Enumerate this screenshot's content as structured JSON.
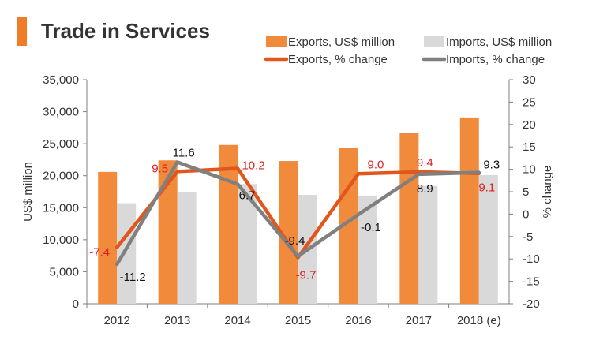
{
  "chart_data": {
    "type": "bar",
    "title": "Trade in Services",
    "categories": [
      "2012",
      "2013",
      "2014",
      "2015",
      "2016",
      "2017",
      "2018 (e)"
    ],
    "y_left": {
      "label": "US$ million",
      "min": 0,
      "max": 35000,
      "step": 5000,
      "ticks": [
        "0",
        "5,000",
        "10,000",
        "15,000",
        "20,000",
        "25,000",
        "30,000",
        "35,000"
      ]
    },
    "y_right": {
      "label": "% change",
      "min": -20,
      "max": 30,
      "step": 5,
      "ticks": [
        "-20",
        "-15",
        "-10",
        "-5",
        "0",
        "5",
        "10",
        "15",
        "20",
        "25",
        "30"
      ]
    },
    "grid": false,
    "legend_position": "top-right",
    "series": [
      {
        "name": "Exports, US$ million",
        "kind": "bar",
        "axis": "left",
        "color": "#f28a3c",
        "values": [
          20600,
          22400,
          24800,
          22300,
          24400,
          26700,
          29100
        ]
      },
      {
        "name": "Imports, US$ million",
        "kind": "bar",
        "axis": "left",
        "color": "#d9d9d9",
        "values": [
          15700,
          17500,
          18700,
          17000,
          16900,
          18400,
          20100
        ]
      },
      {
        "name": "Exports, % change",
        "kind": "line",
        "axis": "right",
        "color": "#e0561c",
        "label_color": "#e02020",
        "values": [
          -7.4,
          9.5,
          10.2,
          -9.7,
          9.0,
          9.4,
          9.1
        ],
        "labels": [
          "-7.4",
          "9.5",
          "10.2",
          "-9.7",
          "9.0",
          "9.4",
          "9.1"
        ]
      },
      {
        "name": "Imports, % change",
        "kind": "line",
        "axis": "right",
        "color": "#808080",
        "label_color": "#111111",
        "values": [
          -11.2,
          11.6,
          6.7,
          -9.4,
          -0.1,
          8.9,
          9.3
        ],
        "labels": [
          "-11.2",
          "11.6",
          "6.7",
          "-9.4",
          "-0.1",
          "8.9",
          "9.3"
        ]
      }
    ]
  }
}
